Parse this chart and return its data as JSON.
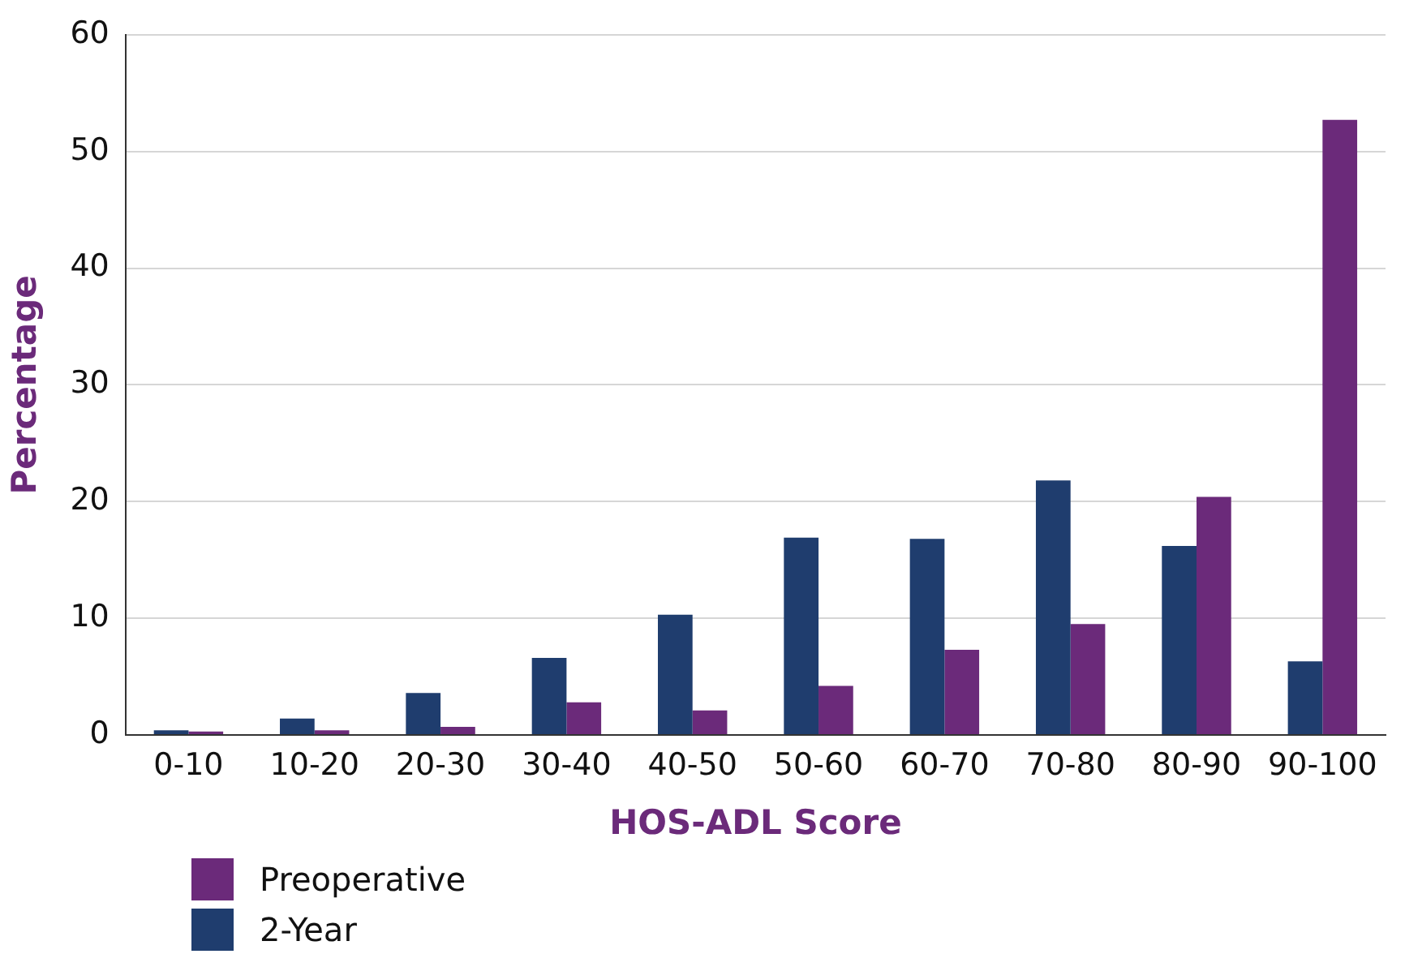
{
  "chart_data": {
    "type": "bar",
    "xlabel": "HOS-ADL Score",
    "ylabel": "Percentage",
    "categories": [
      "0-10",
      "10-20",
      "20-30",
      "30-40",
      "40-50",
      "50-60",
      "60-70",
      "70-80",
      "80-90",
      "90-100"
    ],
    "series": [
      {
        "name": "2-Year",
        "color": "#1f3d6e",
        "values": [
          0.4,
          1.4,
          3.6,
          6.6,
          10.3,
          16.9,
          16.8,
          21.8,
          16.2,
          6.3
        ]
      },
      {
        "name": "Preoperative",
        "color": "#6b2a7a",
        "values": [
          0.3,
          0.4,
          0.7,
          2.8,
          2.1,
          4.2,
          7.3,
          9.5,
          20.4,
          52.7
        ]
      }
    ],
    "ylim": [
      0,
      60
    ],
    "yticks": [
      0,
      10,
      20,
      30,
      40,
      50,
      60
    ],
    "grid": "y",
    "legend": "bottom left"
  }
}
